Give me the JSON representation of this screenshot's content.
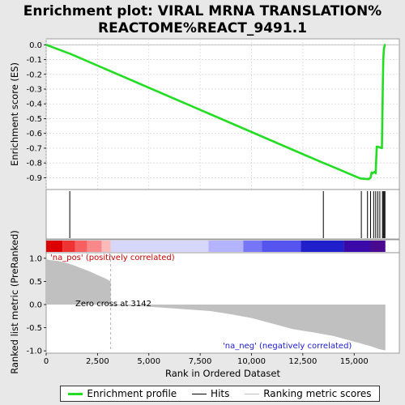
{
  "chart_data": {
    "type": "line",
    "title_lines": [
      "Enrichment plot: VIRAL MRNA TRANSLATION%",
      "REACTOME%REACT_9491.1"
    ],
    "xlabel": "Rank in Ordered Dataset",
    "x_range": [
      0,
      17200
    ],
    "x_ticks": [
      0,
      2500,
      5000,
      7500,
      10000,
      12500,
      15000
    ],
    "x_tick_labels": [
      "0",
      "2,500",
      "5,000",
      "7,500",
      "10,000",
      "12,500",
      "15,000"
    ],
    "es_panel": {
      "ylabel": "Enrichment score (ES)",
      "ylim": [
        -0.98,
        0.04
      ],
      "y_ticks": [
        0.0,
        -0.1,
        -0.2,
        -0.3,
        -0.4,
        -0.5,
        -0.6,
        -0.7,
        -0.8,
        -0.9
      ],
      "y_tick_labels": [
        "0.0",
        "-0.1",
        "-0.2",
        "-0.3",
        "-0.4",
        "-0.5",
        "-0.6",
        "-0.7",
        "-0.8",
        "-0.9"
      ],
      "grid": true,
      "series": [
        {
          "name": "Enrichment profile",
          "color": "#22dd22",
          "x": [
            0,
            1050,
            1150,
            13500,
            13600,
            15300,
            15700,
            15800,
            15850,
            15900,
            16000,
            16050,
            16100,
            16150,
            16350,
            16400,
            16420,
            16440,
            16460,
            16480,
            16500,
            16520
          ],
          "y": [
            0.0,
            -0.055,
            -0.06,
            -0.8,
            -0.805,
            -0.905,
            -0.91,
            -0.9,
            -0.865,
            -0.87,
            -0.86,
            -0.87,
            -0.69,
            -0.69,
            -0.7,
            -0.25,
            -0.1,
            -0.05,
            -0.02,
            -0.01,
            0.0,
            0.0
          ]
        }
      ]
    },
    "hits": [
      1150,
      13500,
      15350,
      15650,
      15800,
      15950,
      16050,
      16150,
      16250,
      16380,
      16420,
      16460,
      16500
    ],
    "hits_color": "#000000",
    "color_bar": {
      "x_end": 16520,
      "segments": [
        {
          "x0": 0,
          "x1": 800,
          "color": "#dd0000"
        },
        {
          "x0": 800,
          "x1": 1400,
          "color": "#ee3333"
        },
        {
          "x0": 1400,
          "x1": 2000,
          "color": "#f76060"
        },
        {
          "x0": 2000,
          "x1": 2700,
          "color": "#f98888"
        },
        {
          "x0": 2700,
          "x1": 3150,
          "color": "#fbbaba"
        },
        {
          "x0": 3150,
          "x1": 7900,
          "color": "#d6d6ff"
        },
        {
          "x0": 7900,
          "x1": 9600,
          "color": "#b3b3ff"
        },
        {
          "x0": 9600,
          "x1": 10500,
          "color": "#7777f5"
        },
        {
          "x0": 10500,
          "x1": 12400,
          "color": "#5555ee"
        },
        {
          "x0": 12400,
          "x1": 14500,
          "color": "#1f1fcc"
        },
        {
          "x0": 14500,
          "x1": 15800,
          "color": "#3a0aa8"
        },
        {
          "x0": 15800,
          "x1": 16520,
          "color": "#4a0a90"
        }
      ]
    },
    "metric_panel": {
      "ylabel": "Ranked list metric (PreRanked)",
      "ylim": [
        -1.05,
        1.12
      ],
      "y_ticks": [
        1.0,
        0.5,
        0.0,
        -0.5,
        -1.0
      ],
      "y_tick_labels": [
        "1.0",
        "0.5",
        "0.0",
        "-0.5",
        "-1.0"
      ],
      "series": [
        {
          "name": "Ranking metric scores",
          "color": "#c0c0c0",
          "x": [
            0,
            200,
            600,
            1000,
            1400,
            1800,
            2200,
            2600,
            2900,
            3142,
            3143,
            4800,
            6400,
            8000,
            9000,
            10000,
            11000,
            12000,
            13000,
            14000,
            15000,
            15800,
            16200,
            16520
          ],
          "y": [
            0.98,
            0.96,
            0.94,
            0.9,
            0.84,
            0.77,
            0.7,
            0.62,
            0.56,
            0.5,
            -0.02,
            -0.04,
            -0.09,
            -0.14,
            -0.21,
            -0.29,
            -0.41,
            -0.53,
            -0.6,
            -0.68,
            -0.8,
            -0.9,
            -0.96,
            -0.99
          ]
        }
      ],
      "zero_cross": 3142,
      "annotations": {
        "pos": "'na_pos' (positively correlated)",
        "neg": "'na_neg' (negatively correlated)",
        "zero": "Zero cross at 3142"
      }
    },
    "legend": [
      {
        "label": "Enrichment profile",
        "color": "#22dd22"
      },
      {
        "label": "Hits",
        "color": "#000000"
      },
      {
        "label": "Ranking metric scores",
        "color": "#c0c0c0"
      }
    ]
  }
}
